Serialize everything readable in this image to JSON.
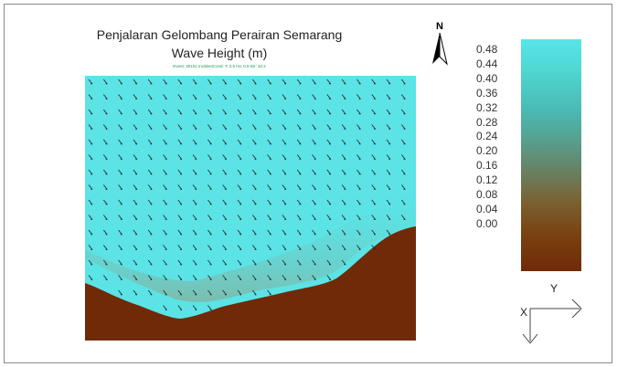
{
  "title": "Penjalaran Gelombang Perairan Semarang",
  "subtitle": "Wave Height (m)",
  "event_line": "Event: 30101 IncidentCond: T: 2.5 Hs: 0.5 Dir: 40.2",
  "north_label": "N",
  "axis_labels": {
    "x": "X",
    "y": "Y"
  },
  "colorbar": {
    "ticks": [
      "0.48",
      "0.44",
      "0.40",
      "0.36",
      "0.32",
      "0.28",
      "0.24",
      "0.20",
      "0.16",
      "0.12",
      "0.08",
      "0.04",
      "0.00"
    ],
    "max_color": "#57e6e8",
    "min_color": "#702a08"
  },
  "colors": {
    "water": "#5be3e6",
    "land": "#702a08",
    "arrow": "#2a2a2a"
  },
  "icons": [
    "north-arrow-icon",
    "xy-axes-icon"
  ]
}
